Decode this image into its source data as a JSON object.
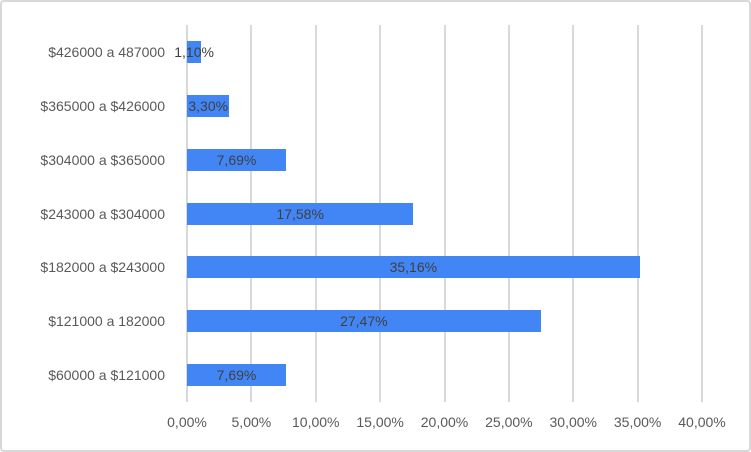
{
  "frame": {
    "background_color": "#FFFFFF",
    "border_color": "#D8D8D8"
  },
  "chart_data": {
    "type": "bar",
    "orientation": "horizontal",
    "title": "",
    "xlabel": "",
    "ylabel": "",
    "categories": [
      "$426000 a 487000",
      "$365000 a $426000",
      "$304000 a $365000",
      "$243000 a $304000",
      "$182000 a $243000",
      "$121000 a 182000",
      "$60000 a $121000"
    ],
    "values": [
      1.1,
      3.3,
      7.69,
      17.58,
      35.16,
      27.47,
      7.69
    ],
    "data_labels": [
      "1,10%",
      "3,30%",
      "7,69%",
      "17,58%",
      "35,16%",
      "27,47%",
      "7,69%"
    ],
    "x_tick_values": [
      0,
      5,
      10,
      15,
      20,
      25,
      30,
      35,
      40
    ],
    "x_tick_labels": [
      "0,00%",
      "5,00%",
      "10,00%",
      "15,00%",
      "20,00%",
      "25,00%",
      "30,00%",
      "35,00%",
      "40,00%"
    ],
    "xlim": [
      0,
      40
    ],
    "grid": true,
    "legend_position": "none",
    "bar_color": "#4285F4",
    "gridline_color": "#D9D9D9",
    "axis_text_color": "#595959",
    "data_label_color": "#404040"
  }
}
